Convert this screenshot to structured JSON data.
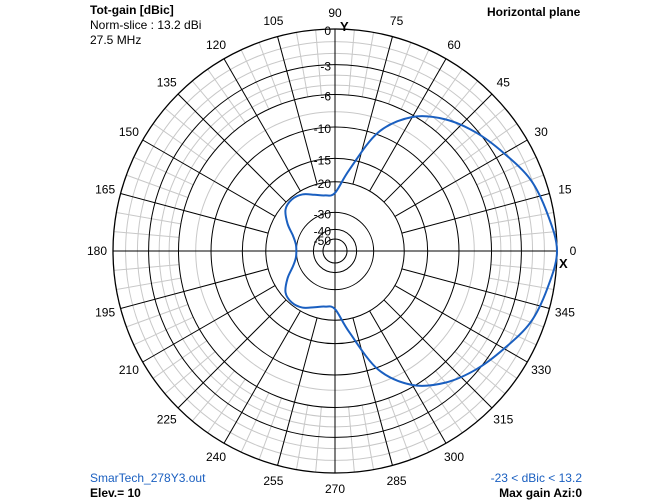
{
  "header": {
    "title": "Tot-gain [dBic]",
    "norm_slice": "Norm-slice : 13.2 dBi",
    "frequency": "27.5 MHz",
    "plane": "Horizontal plane"
  },
  "footer": {
    "file": "SmarTech_278Y3.out",
    "elevation": "Elev.= 10",
    "range": "-23 < dBic < 13.2",
    "max_gain": "Max gain Azi:0"
  },
  "axis_marks": {
    "y": "Y",
    "x": "X"
  },
  "colors": {
    "trace": "#1a5fc0",
    "grid_major": "#000000",
    "grid_minor": "#c8c8c8"
  },
  "chart_data": {
    "type": "polar",
    "angle_unit": "degrees",
    "angle_zero": "right (X axis)",
    "angle_direction": "counter-clockwise",
    "angle_ticks": [
      0,
      15,
      30,
      45,
      60,
      75,
      90,
      105,
      120,
      135,
      150,
      165,
      180,
      195,
      210,
      225,
      240,
      255,
      270,
      285,
      300,
      315,
      330,
      345
    ],
    "radial_tick_labels": [
      "0",
      "-3",
      "-6",
      "-10",
      "-15",
      "-20",
      "-30",
      "-40",
      "-50"
    ],
    "radial_tick_levels": [
      0,
      -3,
      -6,
      -10,
      -15,
      -20,
      -30,
      -40,
      -50
    ],
    "series": [
      {
        "angles": [
          0,
          10,
          20,
          30,
          40,
          50,
          60,
          70,
          80,
          90,
          100,
          110,
          120,
          130,
          140,
          150,
          160,
          170,
          180,
          190,
          200,
          210,
          220,
          230,
          240,
          250,
          260,
          270,
          280,
          290,
          300,
          310,
          320,
          330,
          340,
          350
        ],
        "gain_db": [
          0,
          -0.5,
          -1.1,
          -2.2,
          -3.2,
          -4.4,
          -6.2,
          -9.7,
          -17,
          -23,
          -23.5,
          -22.5,
          -21,
          -20.5,
          -21.2,
          -24,
          -27.5,
          -29.5,
          -30,
          -29.5,
          -27.5,
          -24,
          -21.2,
          -20.5,
          -21,
          -22.5,
          -23.5,
          -23,
          -17,
          -9.7,
          -6.2,
          -4.4,
          -3.2,
          -2.2,
          -1.1,
          -0.5
        ]
      }
    ]
  }
}
